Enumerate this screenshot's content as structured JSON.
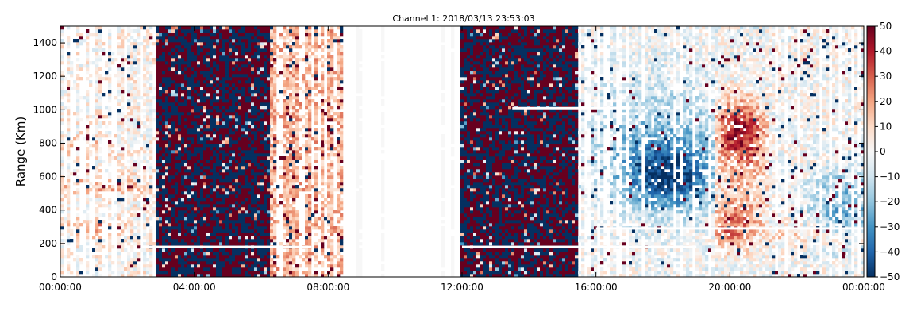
{
  "chart_data": {
    "type": "heatmap",
    "title": "Channel 1: 2018/03/13 23:53:03",
    "xlabel": "",
    "ylabel": "Range (Km)",
    "x_ticks": [
      "00:00:00",
      "04:00:00",
      "08:00:00",
      "12:00:00",
      "16:00:00",
      "20:00:00",
      "00:00:00"
    ],
    "x_range_hours": [
      0,
      24
    ],
    "y_ticks": [
      0,
      200,
      400,
      600,
      800,
      1000,
      1200,
      1400
    ],
    "y_range": [
      0,
      1500
    ],
    "colorbar": {
      "range": [
        -50,
        50
      ],
      "ticks": [
        50,
        40,
        30,
        20,
        10,
        0,
        -10,
        -20,
        -30,
        -40,
        -50
      ],
      "colormap": "RdBu_r",
      "color_low": "#053061",
      "color_mid": "#f7f7f7",
      "color_high": "#67001f"
    },
    "data_gaps_hours": [
      [
        8.4,
        8.85
      ],
      [
        9.0,
        9.55
      ],
      [
        9.65,
        11.35
      ],
      [
        11.45,
        11.65
      ],
      [
        11.75,
        11.95
      ]
    ],
    "regimes": [
      {
        "from_hours": 0.0,
        "to_hours": 2.8,
        "character": "light noise, weak positive bands near 300 km and 550 km"
      },
      {
        "from_hours": 2.8,
        "to_hours": 6.3,
        "character": "dense saturated noise (±50)"
      },
      {
        "from_hours": 6.3,
        "to_hours": 8.4,
        "character": "striped, moderate positive"
      },
      {
        "from_hours": 12.0,
        "to_hours": 15.5,
        "character": "dense saturated noise (±50)"
      },
      {
        "from_hours": 15.5,
        "to_hours": 19.5,
        "character": "light noise with negative (blue) echo region 400–900 km"
      },
      {
        "from_hours": 19.5,
        "to_hours": 21.2,
        "character": "positive (red) echo region 150–1100 km"
      },
      {
        "from_hours": 21.2,
        "to_hours": 24.0,
        "character": "striped, light noise with scattered negatives"
      }
    ]
  }
}
